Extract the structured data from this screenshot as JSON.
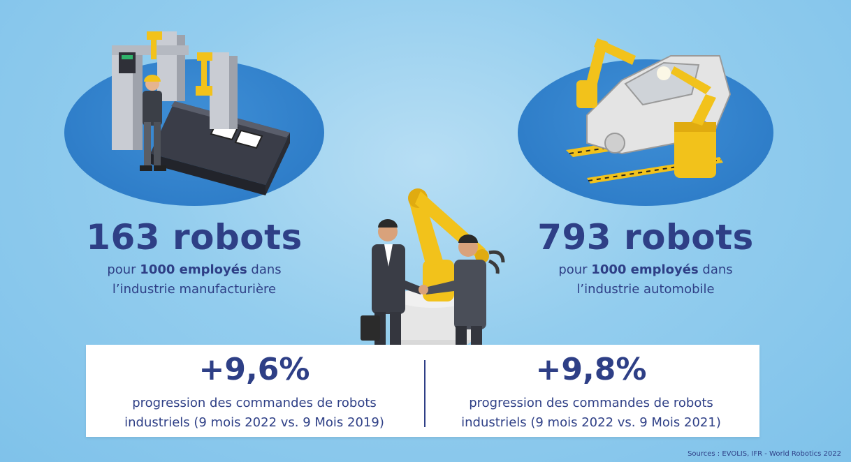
{
  "left_stat": {
    "value": "163 robots",
    "line1_prefix": "pour ",
    "line1_bold": "1000 employés",
    "line1_suffix": " dans",
    "line2": "l’industrie manufacturière"
  },
  "right_stat": {
    "value": "793 robots",
    "line1_prefix": "pour ",
    "line1_bold": "1000 employés",
    "line1_suffix": " dans",
    "line2": "l’industrie automobile"
  },
  "bottom_left": {
    "value": "+9,6%",
    "line1": "progression des commandes de robots",
    "line2": "industriels (9 mois 2022 vs. 9 Mois 2019)"
  },
  "bottom_right": {
    "value": "+9,8%",
    "line1": "progression des commandes de robots",
    "line2": "industriels (9 mois 2022 vs. 9 Mois 2021)"
  },
  "source": "Sources : EVOLIS, IFR - World Robotics 2022",
  "colors": {
    "text": "#2e3f86",
    "blob": "#2f7ec9",
    "background": "#93cdee",
    "robot_yellow": "#f2c21b",
    "panel": "#ffffff"
  },
  "illustrations": {
    "left": "factory-assembly-line-icon",
    "right": "car-welding-robots-icon",
    "center": "businessmen-handshake-robot-arm-icon"
  }
}
